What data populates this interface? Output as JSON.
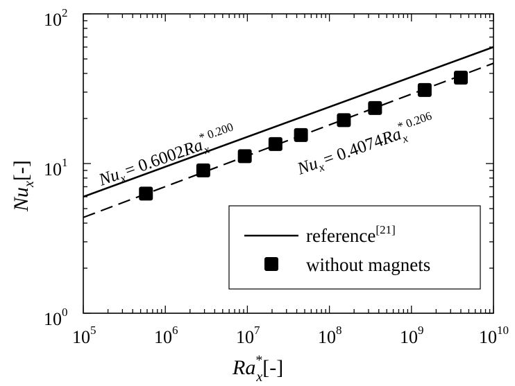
{
  "chart_data": {
    "type": "line",
    "x_scale": "log",
    "y_scale": "log",
    "xlim": [
      100000,
      10000000000
    ],
    "ylim": [
      1,
      100
    ],
    "grid": false,
    "legend_position": "lower-right",
    "x_ticks": [
      {
        "base": "10",
        "exp": "5"
      },
      {
        "base": "10",
        "exp": "6"
      },
      {
        "base": "10",
        "exp": "7"
      },
      {
        "base": "10",
        "exp": "8"
      },
      {
        "base": "10",
        "exp": "9"
      },
      {
        "base": "10",
        "exp": "10"
      }
    ],
    "y_ticks": [
      {
        "base": "10",
        "exp": "0"
      },
      {
        "base": "10",
        "exp": "1"
      },
      {
        "base": "10",
        "exp": "2"
      }
    ],
    "xlabel": {
      "main": "Ra",
      "sup": "*",
      "sub": "x",
      "unit": "[-]"
    },
    "ylabel": {
      "main": "Nu",
      "sub": "x",
      "unit": "[-]"
    },
    "series": [
      {
        "name": "reference",
        "name_sup": "[21]",
        "style": "solid",
        "color": "#000000",
        "coefficient": 0.6002,
        "exponent": 0.2,
        "label": {
          "lhs": "Nu",
          "lhs_sub": "x",
          "rhs": "= 0.6002",
          "var": "Ra",
          "var_sub": "x",
          "var_sup": "* 0.200"
        }
      },
      {
        "name": "without magnets",
        "style": "dashed",
        "color": "#000000",
        "coefficient": 0.4074,
        "exponent": 0.206,
        "label": {
          "lhs": "Nu",
          "lhs_sub": "x",
          "rhs": "= 0.4074",
          "var": "Ra",
          "var_sub": "x",
          "var_sup": "* 0.206"
        },
        "points": [
          {
            "x": 580000,
            "y": 6.3
          },
          {
            "x": 2900000,
            "y": 9.0
          },
          {
            "x": 9300000,
            "y": 11.2
          },
          {
            "x": 22000000,
            "y": 13.5
          },
          {
            "x": 45000000,
            "y": 15.5
          },
          {
            "x": 150000000,
            "y": 19.5
          },
          {
            "x": 360000000,
            "y": 23.5
          },
          {
            "x": 1450000000,
            "y": 31.0
          },
          {
            "x": 4000000000,
            "y": 37.5
          }
        ]
      }
    ]
  }
}
